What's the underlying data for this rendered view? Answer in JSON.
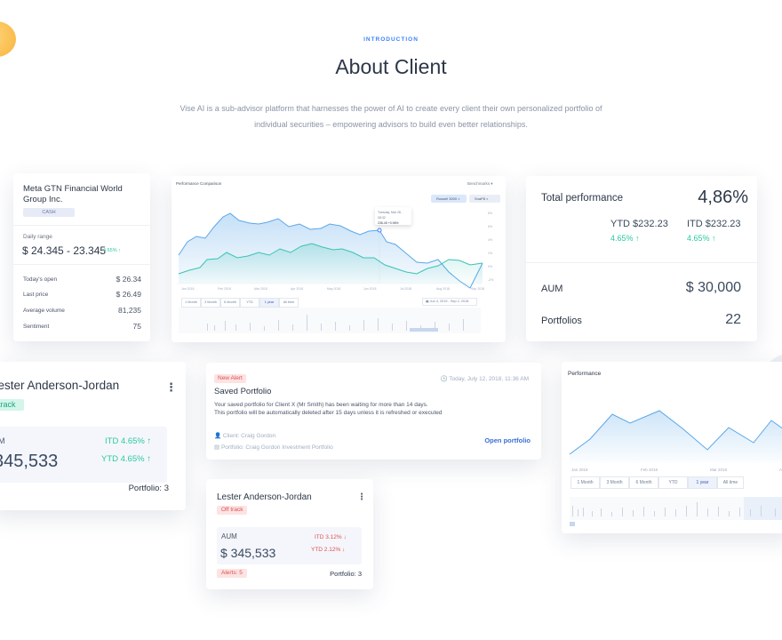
{
  "header": {
    "eyebrow": "INTRODUCTION",
    "title": "About Client",
    "subtitle": "Vise AI is a sub-advisor platform that harnesses the power of AI to create every client their own personalized portfolio of individual securities – empowering advisors to build even better relationships."
  },
  "stock_card": {
    "name": "Meta GTN Financial World Group Inc.",
    "badge": "CASH",
    "range_label": "Daily range",
    "range_value": "$ 24.345 - 23.345",
    "range_change": "4.65% ↑",
    "rows": [
      {
        "label": "Today's open",
        "value": "$ 26.34"
      },
      {
        "label": "Last price",
        "value": "$ 26.49"
      },
      {
        "label": "Average volume",
        "value": "81,235"
      },
      {
        "label": "Sentiment",
        "value": "75"
      }
    ]
  },
  "perf_comparison": {
    "title": "Performance Comparison",
    "benchmarks_label": "Benchmarks ▾",
    "tags": [
      "Russell 3000 ×",
      "SnaP8 ×"
    ],
    "tooltip_date": "Tuesday, Mar 28, 08:32",
    "tooltip_value": "236.45 +0.96%",
    "x_ticks": [
      "Jan 2018",
      "Feb 2018",
      "Mar 2018",
      "Apr 2018",
      "May 2018",
      "Jun 2018",
      "Jul 2018",
      "Aug 2018",
      "Sep 2018"
    ],
    "y_ticks": [
      "8%",
      "6%",
      "4%",
      "2%",
      "0%",
      "-2%",
      "-4%"
    ],
    "ranges": [
      "1 Month",
      "3 Month",
      "6 Month",
      "YTD",
      "1 year",
      "All time"
    ],
    "active_range": "1 year",
    "date_range": "Jun 4, 2019 - Sep 2, 2018"
  },
  "total_performance": {
    "title": "Total performance",
    "value": "4,86%",
    "ytd_label": "YTD $232.23",
    "ytd_change": "4.65% ↑",
    "itd_label": "ITD $232.23",
    "itd_change": "4.65% ↑",
    "aum_label": "AUM",
    "aum_value": "$ 30,000",
    "portfolios_label": "Portfolios",
    "portfolios_value": "22"
  },
  "client_large": {
    "name": "Lester Anderson-Jordan",
    "status": "track",
    "aum_label": "M",
    "aum_value": "345,533",
    "itd": "ITD 4.65% ↑",
    "ytd": "YTD 4.65% ↑",
    "portfolio": "Portfolio: 3"
  },
  "alert_card": {
    "badge": "New Alert",
    "date": "Today, July 12, 2018, 11:36 AM",
    "title": "Saved Portfolio",
    "body_line1": "Your saved portfolio for Client X (Mr Smith) has been waiting for more than 14 days.",
    "body_line2": "This portfolio will be automatically deleted after 15 days unless it is refreshed or executed",
    "client": "Client: Craig Gordon",
    "portfolio": "Portfolio: Craig Gordon Investment Portfolio",
    "action": "Open portfolio"
  },
  "client_small": {
    "name": "Lester Anderson-Jordan",
    "status": "Off track",
    "aum_label": "AUM",
    "aum_value": "$ 345,533",
    "itd": "ITD 3.12% ↓",
    "ytd": "YTD 2.12% ↓",
    "alerts": "Alerts: 5",
    "portfolio": "Portfolio: 3"
  },
  "perf_card": {
    "title": "Performance",
    "x_ticks": [
      "Jan 2018",
      "Feb 2018",
      "Mar 2018",
      "A"
    ],
    "ranges": [
      "1 Month",
      "3 Month",
      "6 Month",
      "YTD",
      "1 year",
      "All time"
    ],
    "active_range": "1 year"
  },
  "colors": {
    "accent": "#3b82f6",
    "positive": "#2cc9a0",
    "negative": "#e05050",
    "line_blue": "#5aa7e8",
    "line_teal": "#39c3b4"
  }
}
